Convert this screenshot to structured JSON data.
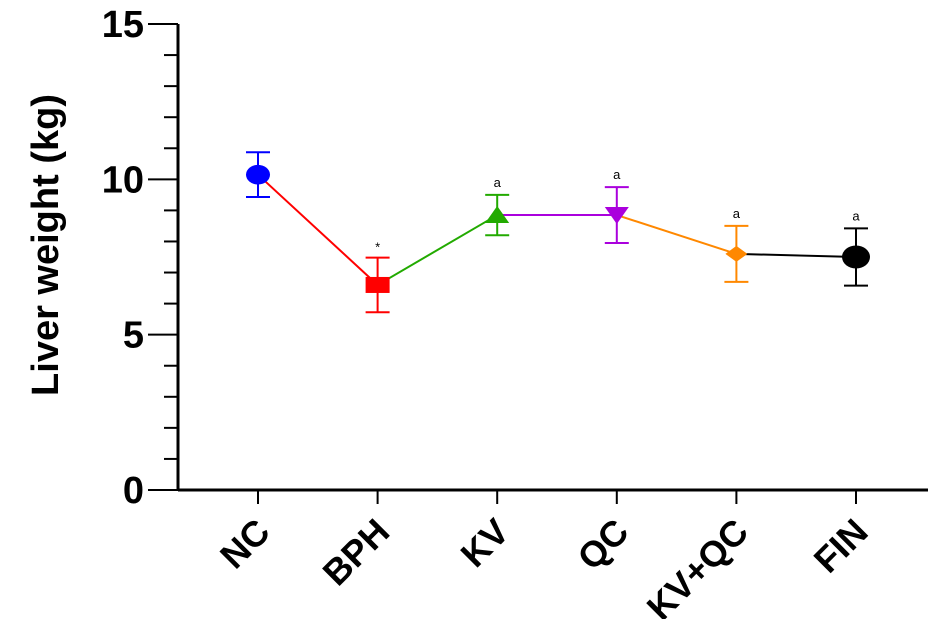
{
  "chart_data": {
    "type": "line",
    "title": "",
    "xlabel": "",
    "ylabel": "Liver weight (kg)",
    "ylim": [
      0,
      15
    ],
    "yticks": [
      "0",
      "5",
      "10",
      "15"
    ],
    "categories": [
      "NC",
      "BPH",
      "KV",
      "QC",
      "KV+QC",
      "FIN"
    ],
    "values": [
      10.15,
      6.6,
      8.85,
      8.85,
      7.6,
      7.5
    ],
    "errors": [
      0.72,
      0.88,
      0.65,
      0.9,
      0.9,
      0.92
    ],
    "annotations": [
      "",
      "*",
      "a",
      "a",
      "a",
      "a"
    ],
    "colors": [
      "#0000ff",
      "#ff0000",
      "#22aa00",
      "#aa00dd",
      "#ff8800",
      "#000000"
    ],
    "markers": [
      "circle",
      "square",
      "triangle-up",
      "triangle-down",
      "diamond",
      "circle"
    ],
    "grid": false
  }
}
